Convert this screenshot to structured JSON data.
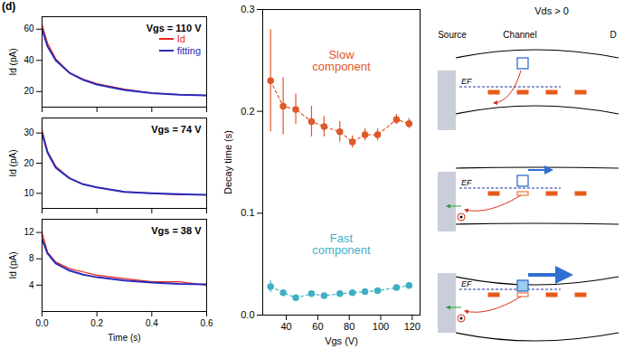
{
  "panel_label": "(d)",
  "chart_data": [
    {
      "type": "line",
      "annotation": "Vgs = 110 V",
      "ylabel": "Id (pA)",
      "x": [
        0,
        0.02,
        0.05,
        0.1,
        0.15,
        0.2,
        0.3,
        0.4,
        0.5,
        0.6
      ],
      "series": [
        {
          "name": "Id",
          "color": "#e8231f",
          "values": [
            63,
            51,
            41,
            32,
            28,
            25,
            21.5,
            19,
            18,
            17.5
          ]
        },
        {
          "name": "fitting",
          "color": "#2a2ab8",
          "values": [
            60,
            49,
            40,
            32,
            27.5,
            24.5,
            21,
            19,
            18,
            17.5
          ]
        }
      ],
      "xlim": [
        0,
        0.6
      ],
      "xticks": [
        {
          "value": 0,
          "label": "0.0"
        },
        {
          "value": 0.2,
          "label": "0.2"
        },
        {
          "value": 0.4,
          "label": "0.4"
        },
        {
          "value": 0.6,
          "label": "0.6"
        }
      ],
      "ylim": [
        10,
        68
      ],
      "yticks": [
        20,
        40,
        60
      ],
      "legend": "top-right",
      "tick_labels": "y"
    },
    {
      "type": "line",
      "annotation": "Vgs = 74 V",
      "ylabel": "Id (pA)",
      "x": [
        0,
        0.02,
        0.05,
        0.1,
        0.15,
        0.2,
        0.3,
        0.4,
        0.5,
        0.6
      ],
      "series": [
        {
          "name": "Id",
          "color": "#e8231f",
          "values": [
            31,
            24,
            19,
            15,
            13,
            12,
            10.5,
            10,
            9.5,
            9.5
          ]
        },
        {
          "name": "fitting",
          "color": "#2a2ab8",
          "values": [
            30,
            23.5,
            18.5,
            15,
            13,
            12,
            10.5,
            10,
            9.7,
            9.5
          ]
        }
      ],
      "xlim": [
        0,
        0.6
      ],
      "xticks": [
        {
          "value": 0,
          "label": "0.0"
        },
        {
          "value": 0.2,
          "label": "0.2"
        },
        {
          "value": 0.4,
          "label": "0.4"
        },
        {
          "value": 0.6,
          "label": "0.6"
        }
      ],
      "ylim": [
        5,
        35
      ],
      "yticks": [
        10,
        20,
        30
      ],
      "tick_labels": "y"
    },
    {
      "type": "line",
      "annotation": "Vgs = 38 V",
      "ylabel": "Id (pA)",
      "xlabel": "Time (s)",
      "x": [
        0,
        0.02,
        0.05,
        0.1,
        0.15,
        0.2,
        0.3,
        0.4,
        0.5,
        0.6
      ],
      "series": [
        {
          "name": "Id",
          "color": "#e8231f",
          "values": [
            12,
            9,
            7.5,
            6.5,
            6,
            5.5,
            5,
            4.5,
            4.5,
            4
          ]
        },
        {
          "name": "fitting",
          "color": "#2a2ab8",
          "values": [
            11,
            8.8,
            7.3,
            6.2,
            5.6,
            5.2,
            4.7,
            4.4,
            4.2,
            4.1
          ]
        }
      ],
      "xlim": [
        0,
        0.6
      ],
      "xticks": [
        {
          "value": 0,
          "label": "0.0"
        },
        {
          "value": 0.2,
          "label": "0.2"
        },
        {
          "value": 0.4,
          "label": "0.4"
        },
        {
          "value": 0.6,
          "label": "0.6"
        }
      ],
      "ylim": [
        0,
        14
      ],
      "yticks": [
        4,
        8,
        12
      ]
    },
    {
      "type": "scatter",
      "xlabel": "Vgs (V)",
      "ylabel": "Decay time (s)",
      "x": [
        30,
        38,
        46,
        56,
        64,
        74,
        82,
        90,
        98,
        110,
        118
      ],
      "series": [
        {
          "name": "Slow component",
          "color": "#e0582a",
          "marker": "circle",
          "line_style": "dashed",
          "values": [
            0.23,
            0.205,
            0.202,
            0.19,
            0.185,
            0.18,
            0.17,
            0.177,
            0.177,
            0.192,
            0.188
          ],
          "errors": [
            0.05,
            0.028,
            0.015,
            0.015,
            0.01,
            0.01,
            0.006,
            0.006,
            0.006,
            0.005,
            0.005
          ]
        },
        {
          "name": "Fast component",
          "color": "#3fb0c4",
          "marker": "circle",
          "line_style": "dashed",
          "values": [
            0.028,
            0.022,
            0.017,
            0.021,
            0.019,
            0.021,
            0.022,
            0.023,
            0.024,
            0.027,
            0.029
          ],
          "errors": [
            0.006,
            0.003,
            0.002,
            0.002,
            0.002,
            0.002,
            0.002,
            0.002,
            0.002,
            0.002,
            0.003
          ]
        }
      ],
      "xlim": [
        25,
        125
      ],
      "xticks": [
        40,
        60,
        80,
        100,
        120
      ],
      "ylim": [
        0,
        0.3
      ],
      "yticks": [
        {
          "value": 0,
          "label": "0.0"
        },
        {
          "value": 0.1,
          "label": "0.1"
        },
        {
          "value": 0.2,
          "label": "0.2"
        },
        {
          "value": 0.3,
          "label": "0.3"
        }
      ]
    }
  ],
  "diagram": {
    "title": "Vds > 0",
    "columns": [
      "Source",
      "Channel",
      "D"
    ],
    "fermi_label": "EF"
  }
}
